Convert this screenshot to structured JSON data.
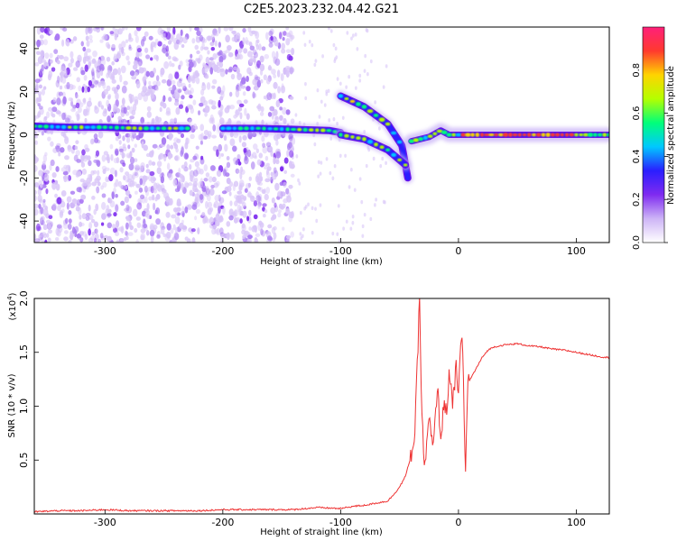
{
  "figure": {
    "title": "C2E5.2023.232.04.42.G21"
  },
  "chart_data": [
    {
      "type": "heatmap",
      "title": "C2E5.2023.232.04.42.G21",
      "xlabel": "Height of straight line (km)",
      "ylabel": "Frequency (Hz)",
      "xlim": [
        -360,
        128
      ],
      "ylim": [
        -50,
        50
      ],
      "xticks": [
        -300,
        -200,
        -100,
        0,
        100
      ],
      "yticks": [
        -40,
        -20,
        0,
        20,
        40
      ],
      "colorbar": {
        "label": "Normalized spectral amplitude",
        "range": [
          0,
          1
        ],
        "ticks": [
          0.0,
          0.2,
          0.4,
          0.6,
          0.8
        ],
        "tick_labels": [
          "0.0",
          "0.2",
          "0.4",
          "0.6",
          "0.8"
        ],
        "colors": [
          "#ffffff",
          "#cdb4f6",
          "#7f2bf0",
          "#2a1eff",
          "#00c8ff",
          "#00ff7a",
          "#b4ff00",
          "#ffd400",
          "#ff3a2e",
          "#ff1f7a"
        ]
      },
      "traces": [
        {
          "x": [
            -360,
            -330,
            -300,
            -270,
            -240,
            -230
          ],
          "y": [
            4,
            3.5,
            3.5,
            3,
            3,
            3
          ]
        },
        {
          "x": [
            -200,
            -170,
            -140,
            -110,
            -100
          ],
          "y": [
            3,
            3,
            2.5,
            2,
            1
          ]
        },
        {
          "x": [
            -100,
            -80,
            -60,
            -48,
            -43
          ],
          "y": [
            18,
            13,
            5,
            -5,
            -20
          ]
        },
        {
          "x": [
            -100,
            -80,
            -60,
            -45
          ],
          "y": [
            0,
            -2,
            -7,
            -14
          ]
        },
        {
          "x": [
            -40,
            -25,
            -15,
            -8,
            0,
            128
          ],
          "y": [
            -3,
            -1,
            2,
            0,
            0,
            0
          ]
        }
      ],
      "noise_region_x": [
        -360,
        -140
      ]
    },
    {
      "type": "line",
      "xlabel": "Height of straight line (km)",
      "ylabel": "SNR (10 * v/v)",
      "scale_label": "(x10",
      "scale_exp": "4",
      "scale_close": ")",
      "xlim": [
        -360,
        128
      ],
      "ylim": [
        0,
        2.0
      ],
      "xticks": [
        -300,
        -200,
        -100,
        0,
        100
      ],
      "yticks": [
        0.5,
        1.0,
        1.5,
        2.0
      ],
      "ytick_labels": [
        "0.5",
        "1.0",
        "1.5",
        "2.0"
      ],
      "series": [
        {
          "color": "#ee3333",
          "x": [
            -360,
            -340,
            -320,
            -300,
            -280,
            -260,
            -240,
            -220,
            -200,
            -180,
            -160,
            -140,
            -120,
            -100,
            -90,
            -80,
            -70,
            -60,
            -55,
            -50,
            -45,
            -40,
            -37,
            -35,
            -33,
            -31,
            -29,
            -27,
            -25,
            -22,
            -20,
            -18,
            -15,
            -12,
            -10,
            -8,
            -5,
            -2,
            0,
            3,
            6,
            8,
            10,
            15,
            20,
            25,
            30,
            40,
            50,
            60,
            70,
            80,
            90,
            100,
            110,
            120,
            128
          ],
          "y": [
            0.02,
            0.03,
            0.03,
            0.04,
            0.03,
            0.03,
            0.03,
            0.03,
            0.04,
            0.04,
            0.04,
            0.04,
            0.06,
            0.05,
            0.07,
            0.08,
            0.1,
            0.12,
            0.18,
            0.25,
            0.35,
            0.55,
            0.75,
            1.35,
            2.0,
            0.9,
            0.45,
            0.6,
            0.9,
            0.6,
            0.8,
            1.2,
            0.7,
            1.05,
            0.95,
            1.3,
            1.0,
            1.35,
            1.15,
            1.7,
            0.4,
            1.25,
            1.25,
            1.35,
            1.45,
            1.52,
            1.55,
            1.57,
            1.58,
            1.56,
            1.55,
            1.53,
            1.52,
            1.5,
            1.48,
            1.46,
            1.45
          ]
        }
      ]
    }
  ]
}
